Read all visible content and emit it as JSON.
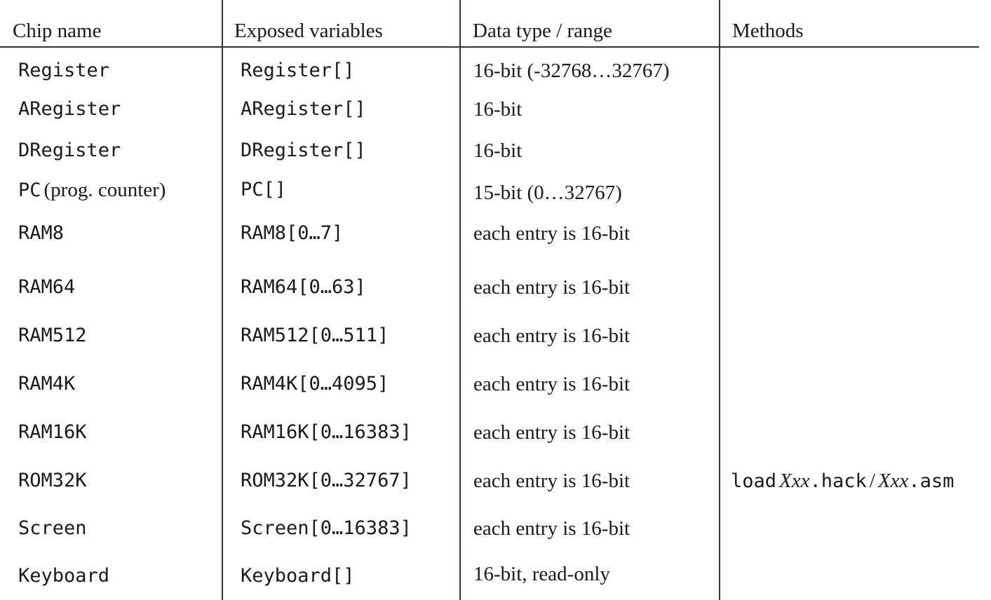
{
  "headers": {
    "chip_name": "Chip name",
    "exposed_variables": "Exposed variables",
    "data_type_range": "Data type / range",
    "methods": "Methods"
  },
  "rows": [
    {
      "chip": "Register",
      "chip_note": "",
      "vars": "Register[]",
      "type": "16-bit (-32768…32767)"
    },
    {
      "chip": "ARegister",
      "chip_note": "",
      "vars": "ARegister[]",
      "type": "16-bit"
    },
    {
      "chip": "DRegister",
      "chip_note": "",
      "vars": "DRegister[]",
      "type": "16-bit"
    },
    {
      "chip": "PC",
      "chip_note": "(prog. counter)",
      "vars": "PC[]",
      "type": "15-bit (0…32767)"
    },
    {
      "chip": "RAM8",
      "chip_note": "",
      "vars": "RAM8[0…7]",
      "type": "each entry is 16-bit"
    },
    {
      "chip": "RAM64",
      "chip_note": "",
      "vars": "RAM64[0…63]",
      "type": "each entry is 16-bit"
    },
    {
      "chip": "RAM512",
      "chip_note": "",
      "vars": "RAM512[0…511]",
      "type": "each entry is 16-bit"
    },
    {
      "chip": "RAM4K",
      "chip_note": "",
      "vars": "RAM4K[0…4095]",
      "type": "each entry is 16-bit"
    },
    {
      "chip": "RAM16K",
      "chip_note": "",
      "vars": "RAM16K[0…16383]",
      "type": "each entry is 16-bit"
    },
    {
      "chip": "ROM32K",
      "chip_note": "",
      "vars": "ROM32K[0…32767]",
      "type": "each entry is 16-bit"
    },
    {
      "chip": "Screen",
      "chip_note": "",
      "vars": "Screen[0…16383]",
      "type": "each entry is 16-bit"
    },
    {
      "chip": "Keyboard",
      "chip_note": "",
      "vars": "Keyboard[]",
      "type": "16-bit, read-only"
    }
  ],
  "rom_method": {
    "keyword": "load",
    "name1": "Xxx",
    "ext1": ".hack",
    "sep": "/",
    "name2": "Xxx",
    "ext2": ".asm"
  }
}
